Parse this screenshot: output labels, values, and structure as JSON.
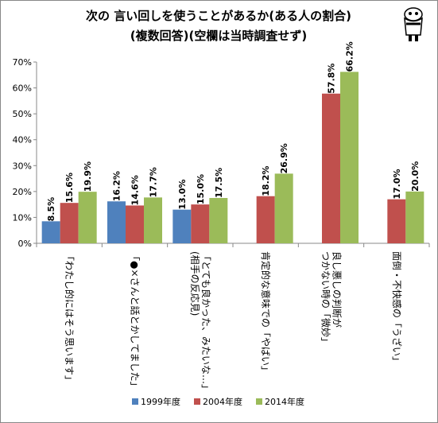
{
  "chart_data": {
    "type": "bar",
    "title_lines": [
      "次の 言い回しを使うことがあるか(ある人の割合)",
      "(複数回答)(空欄は当時調査せず)"
    ],
    "categories": [
      [
        "「わたし的にはそう思います」"
      ],
      [
        "「●×さんと話とかしてました」"
      ],
      [
        "「とても良かった、みたいな…」",
        "(相手の反応見)"
      ],
      [
        "肯定的な意味での「やばい」"
      ],
      [
        "良し悪しの判断が",
        "つかない時の「微妙」"
      ],
      [
        "面倒・不快感の「うざい」"
      ]
    ],
    "series": [
      {
        "name": "1999年度",
        "values": [
          8.5,
          16.2,
          13.0,
          null,
          null,
          null
        ],
        "labels": [
          "8.5%",
          "16.2%",
          "13.0%",
          null,
          null,
          null
        ]
      },
      {
        "name": "2004年度",
        "values": [
          15.6,
          14.6,
          15.0,
          18.2,
          57.8,
          17.0
        ],
        "labels": [
          "15.6%",
          "14.6%",
          "15.0%",
          "18.2%",
          "57.8%",
          "17.0%"
        ]
      },
      {
        "name": "2014年度",
        "values": [
          19.9,
          17.7,
          17.5,
          26.9,
          66.2,
          20.0
        ],
        "labels": [
          "19.9%",
          "17.7%",
          "17.5%",
          "26.9%",
          "66.2%",
          "20.0%"
        ]
      }
    ],
    "colors": [
      "#4f81bd",
      "#c0504d",
      "#9bbb59"
    ],
    "ylim": [
      0,
      70
    ],
    "yticks": [
      0,
      10,
      20,
      30,
      40,
      50,
      60,
      70
    ],
    "ytick_labels": [
      "0%",
      "10%",
      "20%",
      "30%",
      "40%",
      "50%",
      "60%",
      "70%"
    ],
    "grid": false,
    "legend_position": "bottom"
  }
}
